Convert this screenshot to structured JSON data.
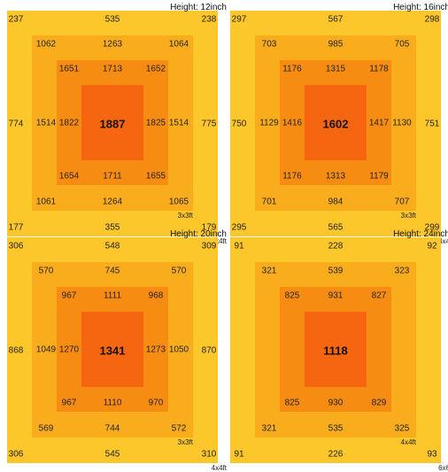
{
  "chart_data": [
    {
      "type": "heatmap",
      "title": "Height: 12inch",
      "unit": "",
      "zones": [
        "4x4ft",
        "3x3ft",
        "",
        ""
      ],
      "outer": {
        "tl": 237,
        "t": 535,
        "tr": 238,
        "l": 774,
        "r": 775,
        "bl": 177,
        "b": 355,
        "br": 179
      },
      "ring2": {
        "tl": 1062,
        "t": 1263,
        "tr": 1064,
        "l": 1514,
        "r": 1514,
        "bl": 1061,
        "b": 1264,
        "br": 1065
      },
      "ring3": {
        "tl": 1651,
        "t": 1713,
        "tr": 1652,
        "l": 1822,
        "r": 1825,
        "bl": 1654,
        "b": 1711,
        "br": 1655
      },
      "center": 1887
    },
    {
      "type": "heatmap",
      "title": "Height: 16inch",
      "zones": [
        "4x4",
        "3x3ft",
        "",
        ""
      ],
      "outer": {
        "tl": 297,
        "t": 567,
        "tr": 298,
        "l": 750,
        "r": 751,
        "bl": 295,
        "b": 565,
        "br": 299
      },
      "ring2": {
        "tl": 703,
        "t": 985,
        "tr": 705,
        "l": 1129,
        "r": 1130,
        "bl": 701,
        "b": 984,
        "br": 707
      },
      "ring3": {
        "tl": 1176,
        "t": 1315,
        "tr": 1178,
        "l": 1416,
        "r": 1417,
        "bl": 1176,
        "b": 1313,
        "br": 1179
      },
      "center": 1602
    },
    {
      "type": "heatmap",
      "title": "Height: 20inch",
      "zones": [
        "4x4ft",
        "3x3ft",
        "",
        ""
      ],
      "outer": {
        "tl": 306,
        "t": 548,
        "tr": 309,
        "l": 868,
        "r": 870,
        "bl": 306,
        "b": 545,
        "br": 310
      },
      "ring2": {
        "tl": 570,
        "t": 745,
        "tr": 570,
        "l": 1049,
        "r": 1050,
        "bl": 569,
        "b": 744,
        "br": 572
      },
      "ring3": {
        "tl": 967,
        "t": 1111,
        "tr": 968,
        "l": 1270,
        "r": 1273,
        "bl": 967,
        "b": 1110,
        "br": 970
      },
      "center": 1341
    },
    {
      "type": "heatmap",
      "title": "Height: 24inch",
      "zones": [
        "6x6",
        "4x4ft",
        "",
        ""
      ],
      "outer": {
        "tl": 91,
        "t": 228,
        "tr": 92,
        "l": null,
        "r": null,
        "bl": 91,
        "b": 226,
        "br": 93
      },
      "ring2": {
        "tl": 321,
        "t": 539,
        "tr": 323,
        "l": null,
        "r": null,
        "bl": 321,
        "b": 535,
        "br": 325
      },
      "ring3": {
        "tl": 825,
        "t": 931,
        "tr": 827,
        "l": null,
        "r": null,
        "bl": 825,
        "b": 930,
        "br": 829
      },
      "center": 1118
    }
  ],
  "colors": {
    "outer": "#fcc72a",
    "ring2": "#f9ad1d",
    "ring3": "#f78c12",
    "center": "#f66611"
  }
}
